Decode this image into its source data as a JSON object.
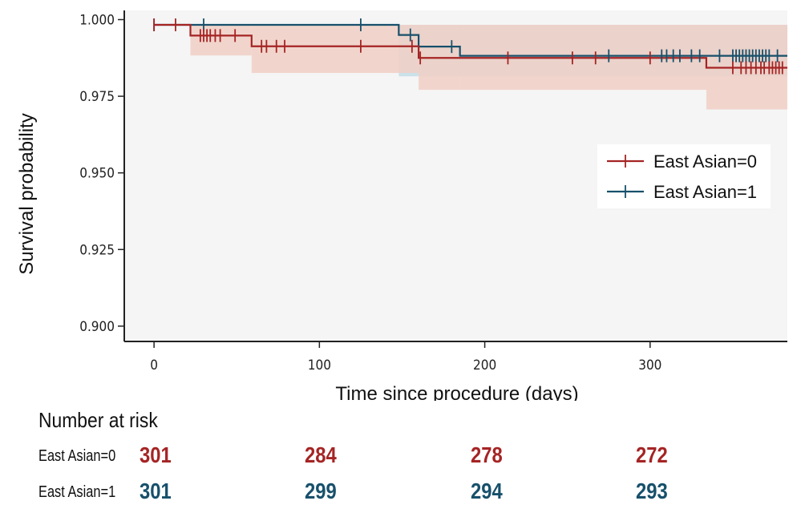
{
  "chart_data": {
    "type": "line",
    "subtype": "kaplan-meier",
    "xlabel": "Time since procedure (days)",
    "ylabel": "Survival probability",
    "xlim": [
      -18,
      383
    ],
    "ylim": [
      0.895,
      1.003
    ],
    "xticks": [
      0,
      100,
      200,
      300
    ],
    "yticks": [
      0.9,
      0.925,
      0.95,
      0.975,
      1.0
    ],
    "ytick_labels": [
      "0.900",
      "0.925",
      "0.950",
      "0.975",
      "1.000"
    ],
    "grid": false,
    "legend_position": "right",
    "series": [
      {
        "name": "East Asian=0",
        "color": "#a52424",
        "ci_color": "#f0cfc4",
        "steps": [
          [
            0,
            0.9983
          ],
          [
            22,
            0.9948
          ],
          [
            59,
            0.9913
          ],
          [
            160,
            0.9875
          ],
          [
            334,
            0.9843
          ],
          [
            383,
            0.9843
          ]
        ],
        "ci_bands": [
          [
            0,
            22,
            0.9983,
            0.9983
          ],
          [
            22,
            59,
            0.9883,
            0.9983
          ],
          [
            59,
            160,
            0.9826,
            0.9983
          ],
          [
            160,
            185,
            0.9771,
            0.9983
          ],
          [
            185,
            334,
            0.9771,
            0.9983
          ],
          [
            334,
            383,
            0.9707,
            0.9983
          ]
        ],
        "censor_times": [
          0,
          13,
          28,
          30,
          32,
          34,
          37,
          40,
          49,
          65,
          68,
          74,
          79,
          125,
          156,
          161,
          214,
          253,
          267,
          300,
          350,
          355,
          358,
          361,
          364,
          367,
          369,
          372,
          374,
          376,
          378,
          380
        ]
      },
      {
        "name": "East Asian=1",
        "color": "#17506b",
        "ci_color": "#c8dfe8",
        "steps": [
          [
            0,
            0.9983
          ],
          [
            95,
            0.9983
          ],
          [
            148,
            0.995
          ],
          [
            160,
            0.9912
          ],
          [
            185,
            0.9882
          ],
          [
            334,
            0.9882
          ],
          [
            383,
            0.9882
          ]
        ],
        "ci_bands": [
          [
            148,
            383,
            0.9815,
            0.9983
          ]
        ],
        "censor_times": [
          0,
          30,
          125,
          155,
          180,
          275,
          307,
          310,
          314,
          318,
          325,
          330,
          342,
          350,
          352,
          354,
          356,
          358,
          360,
          362,
          364,
          366,
          368,
          370,
          372,
          377
        ]
      }
    ]
  },
  "risk_table": {
    "title": "Number at risk",
    "rows": [
      {
        "label": "East Asian=0",
        "color": "#a52424",
        "values": [
          "301",
          "284",
          "278",
          "272"
        ]
      },
      {
        "label": "East Asian=1",
        "color": "#17506b",
        "values": [
          "301",
          "299",
          "294",
          "293"
        ]
      }
    ]
  }
}
